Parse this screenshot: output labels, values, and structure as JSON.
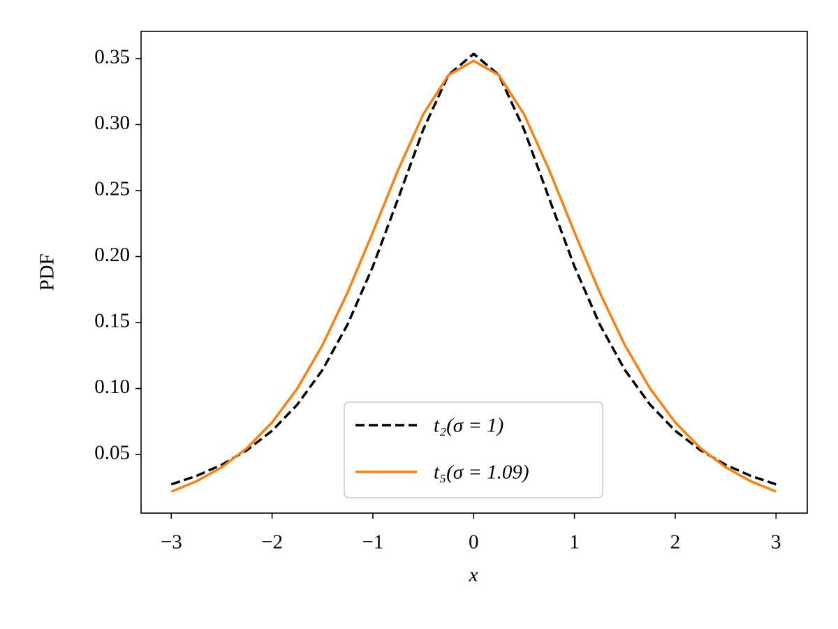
{
  "chart_data": {
    "type": "line",
    "xlabel": "x",
    "ylabel": "PDF",
    "x": [
      -3,
      -2.75,
      -2.5,
      -2.25,
      -2,
      -1.75,
      -1.5,
      -1.25,
      -1,
      -0.75,
      -0.5,
      -0.25,
      0,
      0.25,
      0.5,
      0.75,
      1,
      1.25,
      1.5,
      1.75,
      2,
      2.25,
      2.5,
      2.75,
      3
    ],
    "series": [
      {
        "name": "t₂(σ = 1)",
        "color": "#000000",
        "dash": true,
        "values": [
          0.0274,
          0.0338,
          0.0422,
          0.0533,
          0.068,
          0.0878,
          0.1141,
          0.1487,
          0.1925,
          0.2438,
          0.2963,
          0.3376,
          0.3536,
          0.3376,
          0.2963,
          0.2438,
          0.1925,
          0.1487,
          0.1141,
          0.0878,
          0.068,
          0.0533,
          0.0422,
          0.0338,
          0.0274
        ]
      },
      {
        "name": "t₅(σ = 1.09)",
        "color": "#ff7f0e",
        "dash": false,
        "values": [
          0.0219,
          0.0297,
          0.0403,
          0.0548,
          0.0743,
          0.1,
          0.1329,
          0.1729,
          0.2184,
          0.2655,
          0.3078,
          0.3375,
          0.3483,
          0.3375,
          0.3078,
          0.2655,
          0.2184,
          0.1729,
          0.1329,
          0.1,
          0.0743,
          0.0548,
          0.0403,
          0.0297,
          0.0219
        ]
      }
    ],
    "xlim": [
      -3.3,
      3.31
    ],
    "ylim": [
      0.0056,
      0.3706
    ],
    "xticks": [
      {
        "value": -3,
        "label": "−3"
      },
      {
        "value": -2,
        "label": "−2"
      },
      {
        "value": -1,
        "label": "−1"
      },
      0,
      1,
      2,
      3
    ],
    "yticks": [
      0.05,
      {
        "value": 0.1,
        "label": "0.10"
      },
      0.15,
      {
        "value": 0.2,
        "label": "0.20"
      },
      0.25,
      {
        "value": 0.3,
        "label": "0.30"
      },
      0.35
    ],
    "legend": "lower center",
    "grid": false
  }
}
